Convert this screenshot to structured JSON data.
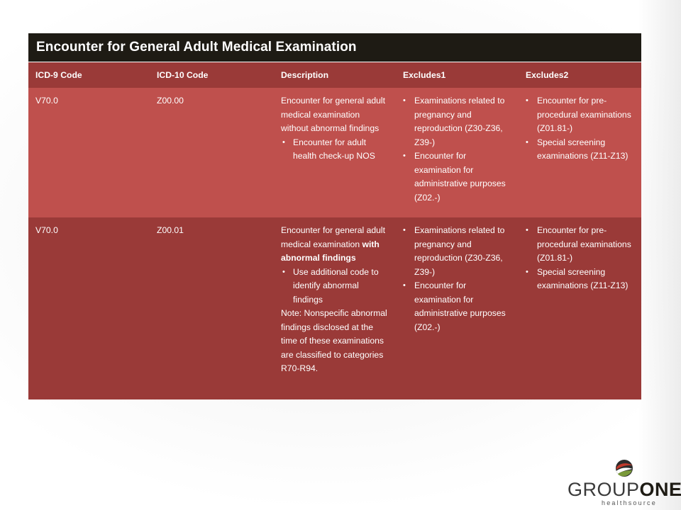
{
  "slide": {
    "title": "Encounter for General Adult Medical Examination"
  },
  "table": {
    "headers": [
      "ICD-9 Code",
      "ICD-10 Code",
      "Description",
      "Excludes1",
      "Excludes2"
    ],
    "rows": [
      {
        "icd9": "V70.0",
        "icd10": "Z00.00",
        "description_lead": "Encounter for general adult medical examination without abnormal findings",
        "description_bullets": [
          "Encounter for adult health check-up NOS"
        ],
        "excludes1": [
          "Examinations related to pregnancy and reproduction (Z30-Z36, Z39-)",
          "Encounter for examination for administrative purposes (Z02.-)"
        ],
        "excludes2": [
          "Encounter for pre-procedural examinations (Z01.81-)",
          "Special screening examinations (Z11-Z13)"
        ]
      },
      {
        "icd9": "V70.0",
        "icd10": "Z00.01",
        "description_lead": "Encounter for general adult medical examination ",
        "description_lead_bold": "with abnormal findings",
        "description_bullets": [
          "Use additional code to identify abnormal findings"
        ],
        "description_note": "Note: Nonspecific abnormal findings disclosed at the time of these examinations are classified to categories R70-R94.",
        "excludes1": [
          "Examinations related to pregnancy and reproduction (Z30-Z36, Z39-)",
          "Encounter for examination for administrative purposes (Z02.-)"
        ],
        "excludes2": [
          "Encounter for pre-procedural examinations (Z01.81-)",
          "Special screening examinations (Z11-Z13)"
        ]
      }
    ]
  },
  "logo": {
    "word_left": "GROUP",
    "word_right": "ONE",
    "tagline": "healthsource",
    "icon": "sphere-logo-icon"
  },
  "colors": {
    "title_bg": "#1e1b14",
    "header_bg": "#9a3a38",
    "row_light": "#bf504d",
    "row_dark": "#9a3a38"
  }
}
